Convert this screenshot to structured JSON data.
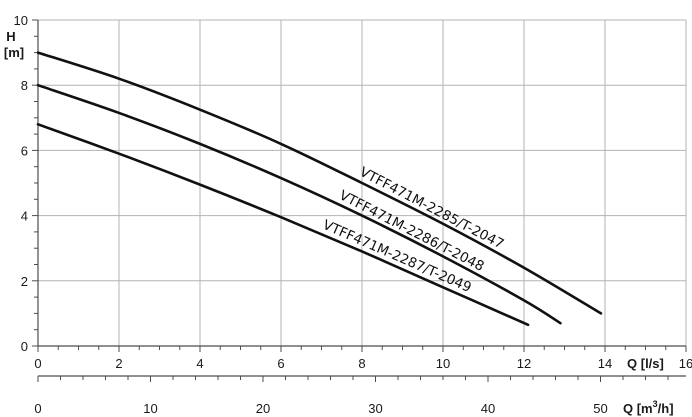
{
  "chart_data": {
    "type": "line",
    "title": "",
    "colors": {
      "curve": "#111111",
      "grid": "#b3b3b3",
      "axis": "#4d4d4d"
    },
    "grid": true,
    "xlabel_primary": {
      "name": "Q",
      "unit": "[l/s]"
    },
    "xlabel_secondary": {
      "name": "Q",
      "unit": "[m",
      "unit_sup": "3",
      "unit_end": "/h]"
    },
    "ylabel": {
      "name": "H",
      "unit": "[m]"
    },
    "xlim": [
      0,
      16
    ],
    "ylim": [
      0,
      10
    ],
    "x_ticks": [
      "0",
      "2",
      "4",
      "6",
      "8",
      "10",
      "12",
      "14",
      "16"
    ],
    "y_ticks": [
      "0",
      "2",
      "4",
      "6",
      "8",
      "10"
    ],
    "x2_ticks": [
      "0",
      "10",
      "20",
      "30",
      "40",
      "50"
    ],
    "series": [
      {
        "name": "VTFF471M-2285/T-2047",
        "x": [
          0,
          2,
          4,
          6,
          8,
          10,
          12,
          13.9
        ],
        "y": [
          9.0,
          8.2,
          7.25,
          6.2,
          5.0,
          3.75,
          2.4,
          1.0
        ]
      },
      {
        "name": "VTFF471M-2286/T-2048",
        "x": [
          0,
          2,
          4,
          6,
          8,
          10,
          12,
          12.9
        ],
        "y": [
          8.0,
          7.15,
          6.2,
          5.15,
          4.0,
          2.75,
          1.4,
          0.7
        ]
      },
      {
        "name": "VTFF471M-2287/T-2049",
        "x": [
          0,
          2,
          4,
          6,
          8,
          10,
          12.1
        ],
        "y": [
          6.8,
          5.9,
          4.95,
          3.95,
          2.9,
          1.8,
          0.65
        ]
      }
    ]
  }
}
